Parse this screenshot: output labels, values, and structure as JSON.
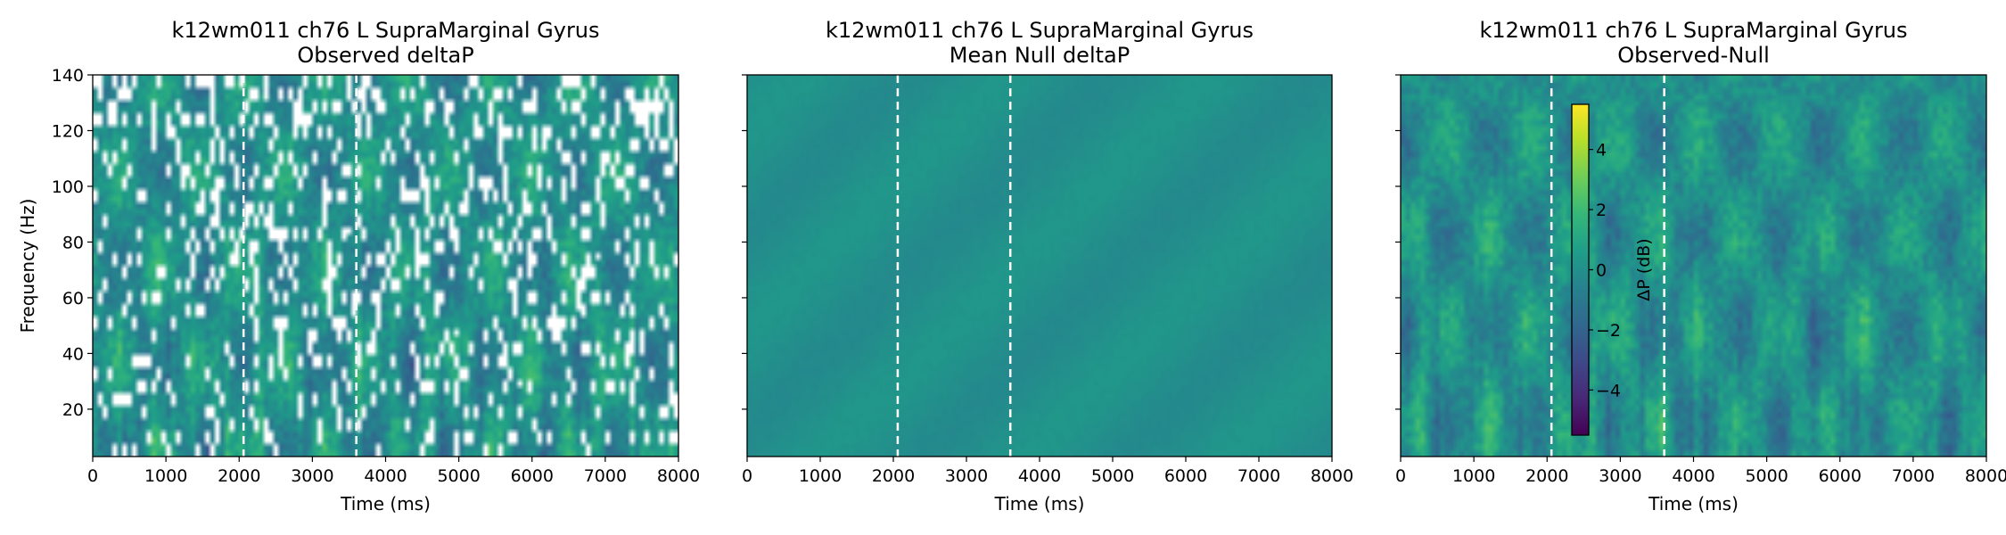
{
  "chart_data": [
    {
      "type": "heatmap",
      "title": "k12wm011 ch76 L SupraMarginal Gyrus",
      "subtitle": "Observed deltaP",
      "xlabel": "Time (ms)",
      "ylabel": "Frequency (Hz)",
      "xlim": [
        0,
        8000
      ],
      "ylim": [
        3,
        140
      ],
      "xticks": [
        0,
        1000,
        2000,
        3000,
        4000,
        5000,
        6000,
        7000,
        8000
      ],
      "yticks": [
        20,
        40,
        60,
        80,
        100,
        120,
        140
      ],
      "show_yticklabels": true,
      "event_lines_ms": [
        2060,
        3600
      ],
      "colormap": "viridis",
      "value_range_db": [
        -5.5,
        5.5
      ],
      "masked_cells": "white gaps where value is non-significant"
    },
    {
      "type": "heatmap",
      "title": "k12wm011 ch76 L SupraMarginal Gyrus",
      "subtitle": "Mean Null deltaP",
      "xlabel": "Time (ms)",
      "ylabel": "",
      "xlim": [
        0,
        8000
      ],
      "ylim": [
        3,
        140
      ],
      "xticks": [
        0,
        1000,
        2000,
        3000,
        4000,
        5000,
        6000,
        7000,
        8000
      ],
      "yticks": [
        20,
        40,
        60,
        80,
        100,
        120,
        140
      ],
      "show_yticklabels": false,
      "event_lines_ms": [
        2060,
        3600
      ],
      "colormap": "viridis",
      "value_range_db": [
        -5.5,
        5.5
      ]
    },
    {
      "type": "heatmap",
      "title": "k12wm011 ch76 L SupraMarginal Gyrus",
      "subtitle": "Observed-Null",
      "xlabel": "Time (ms)",
      "ylabel": "",
      "xlim": [
        0,
        8000
      ],
      "ylim": [
        3,
        140
      ],
      "xticks": [
        0,
        1000,
        2000,
        3000,
        4000,
        5000,
        6000,
        7000,
        8000
      ],
      "yticks": [
        20,
        40,
        60,
        80,
        100,
        120,
        140
      ],
      "show_yticklabels": false,
      "event_lines_ms": [
        2060,
        3600
      ],
      "colormap": "viridis",
      "value_range_db": [
        -5.5,
        5.5
      ],
      "colorbar": {
        "label": "ΔP (dB)",
        "ticks": [
          4,
          2,
          0,
          -2,
          -4
        ],
        "tick_labels": [
          "4",
          "2",
          "0",
          "−2",
          "−4"
        ],
        "range": [
          -5.5,
          5.5
        ]
      }
    }
  ],
  "colors": {
    "event_line": "#ffffff",
    "axis": "#000000",
    "viridis": [
      "#440154",
      "#482878",
      "#3e4989",
      "#31688e",
      "#26828e",
      "#1f9e89",
      "#35b779",
      "#6ece58",
      "#b5de2b",
      "#fde725"
    ]
  }
}
